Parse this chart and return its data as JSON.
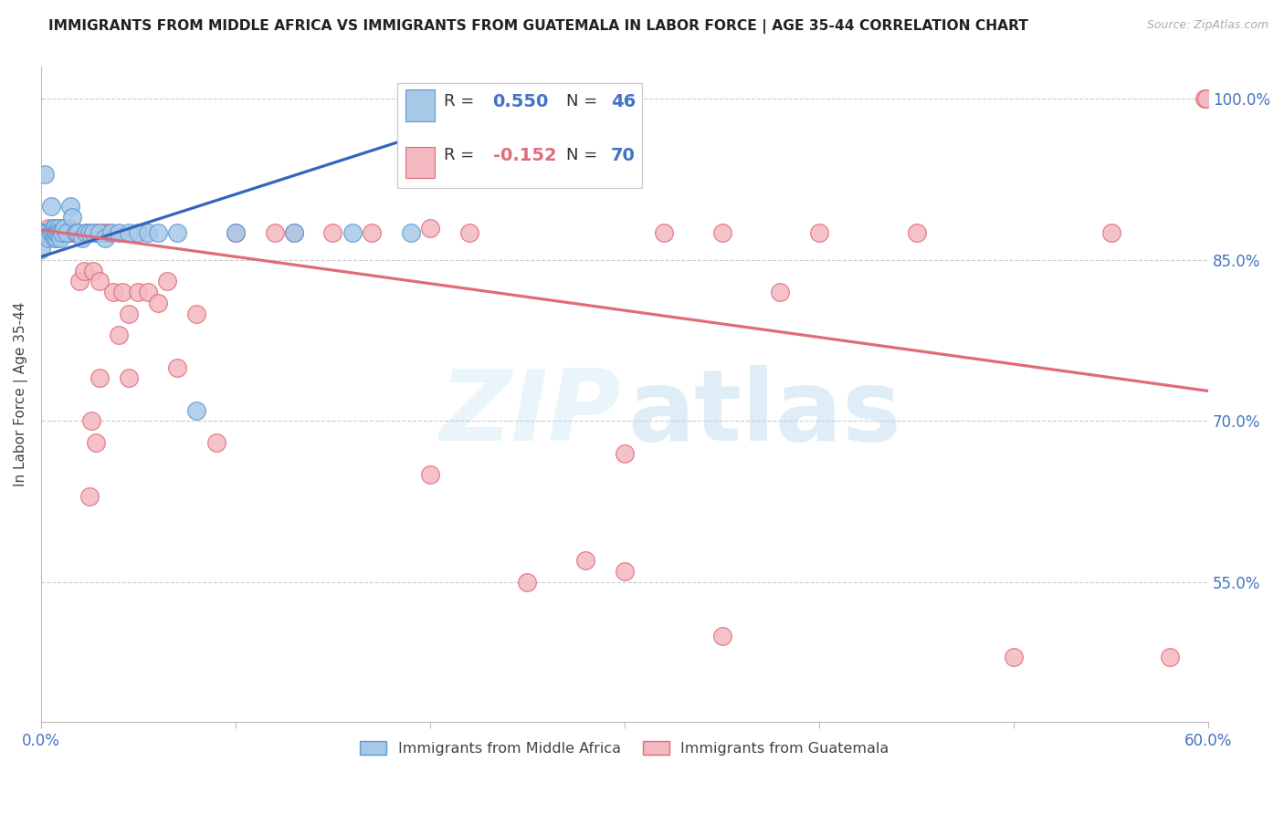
{
  "title": "IMMIGRANTS FROM MIDDLE AFRICA VS IMMIGRANTS FROM GUATEMALA IN LABOR FORCE | AGE 35-44 CORRELATION CHART",
  "source": "Source: ZipAtlas.com",
  "ylabel": "In Labor Force | Age 35-44",
  "R_blue": 0.55,
  "N_blue": 46,
  "R_pink": -0.152,
  "N_pink": 70,
  "color_blue_face": "#a8c8e8",
  "color_blue_edge": "#5b9bd5",
  "color_pink_face": "#f4b8c0",
  "color_pink_edge": "#e06c7a",
  "color_line_blue": "#3366bb",
  "color_line_pink": "#e06c7a",
  "color_axis_label": "#4472c4",
  "color_text": "#222222",
  "color_grid": "#cccccc",
  "color_source": "#aaaaaa",
  "xlim": [
    0.0,
    0.6
  ],
  "ylim": [
    0.42,
    1.03
  ],
  "yticks": [
    1.0,
    0.85,
    0.7,
    0.55
  ],
  "ytick_labels": [
    "100.0%",
    "85.0%",
    "70.0%",
    "55.0%"
  ],
  "xtick_left_label": "0.0%",
  "xtick_right_label": "60.0%",
  "legend_label_blue": "Immigrants from Middle Africa",
  "legend_label_pink": "Immigrants from Guatemala",
  "blue_line_x": [
    0.0,
    0.215
  ],
  "blue_line_y": [
    0.853,
    0.978
  ],
  "pink_line_x": [
    0.0,
    0.6
  ],
  "pink_line_y": [
    0.878,
    0.728
  ],
  "blue_x": [
    0.0,
    0.0,
    0.001,
    0.002,
    0.003,
    0.004,
    0.005,
    0.005,
    0.006,
    0.006,
    0.007,
    0.007,
    0.007,
    0.008,
    0.008,
    0.008,
    0.009,
    0.009,
    0.01,
    0.01,
    0.011,
    0.012,
    0.013,
    0.015,
    0.016,
    0.018,
    0.019,
    0.021,
    0.023,
    0.025,
    0.027,
    0.03,
    0.033,
    0.036,
    0.04,
    0.045,
    0.05,
    0.055,
    0.06,
    0.07,
    0.08,
    0.1,
    0.13,
    0.16,
    0.19,
    0.215
  ],
  "blue_y": [
    0.86,
    0.875,
    0.875,
    0.93,
    0.875,
    0.87,
    0.9,
    0.875,
    0.88,
    0.875,
    0.88,
    0.875,
    0.87,
    0.875,
    0.87,
    0.875,
    0.88,
    0.875,
    0.875,
    0.87,
    0.875,
    0.88,
    0.875,
    0.9,
    0.89,
    0.875,
    0.875,
    0.87,
    0.875,
    0.875,
    0.875,
    0.875,
    0.87,
    0.875,
    0.875,
    0.875,
    0.875,
    0.875,
    0.875,
    0.875,
    0.71,
    0.875,
    0.875,
    0.875,
    0.875,
    0.975
  ],
  "pink_x": [
    0.0,
    0.0,
    0.001,
    0.002,
    0.003,
    0.004,
    0.005,
    0.006,
    0.007,
    0.008,
    0.009,
    0.009,
    0.01,
    0.011,
    0.012,
    0.013,
    0.014,
    0.015,
    0.016,
    0.017,
    0.018,
    0.019,
    0.02,
    0.022,
    0.023,
    0.025,
    0.027,
    0.028,
    0.03,
    0.032,
    0.035,
    0.037,
    0.04,
    0.042,
    0.045,
    0.05,
    0.055,
    0.06,
    0.065,
    0.07,
    0.08,
    0.09,
    0.1,
    0.12,
    0.13,
    0.15,
    0.17,
    0.2,
    0.22,
    0.25,
    0.28,
    0.3,
    0.32,
    0.35,
    0.38,
    0.4,
    0.45,
    0.5,
    0.55,
    0.58,
    0.026,
    0.028,
    0.3,
    0.35,
    0.2,
    0.025,
    0.03,
    0.045,
    0.598,
    0.599
  ],
  "pink_y": [
    0.875,
    0.875,
    0.875,
    0.875,
    0.875,
    0.88,
    0.875,
    0.875,
    0.875,
    0.875,
    0.875,
    0.875,
    0.88,
    0.875,
    0.875,
    0.875,
    0.88,
    0.875,
    0.875,
    0.875,
    0.875,
    0.875,
    0.83,
    0.84,
    0.875,
    0.875,
    0.84,
    0.875,
    0.83,
    0.875,
    0.875,
    0.82,
    0.78,
    0.82,
    0.8,
    0.82,
    0.82,
    0.81,
    0.83,
    0.75,
    0.8,
    0.68,
    0.875,
    0.875,
    0.875,
    0.875,
    0.875,
    0.88,
    0.875,
    0.55,
    0.57,
    0.67,
    0.875,
    0.875,
    0.82,
    0.875,
    0.875,
    0.48,
    0.875,
    0.48,
    0.7,
    0.68,
    0.56,
    0.5,
    0.65,
    0.63,
    0.74,
    0.74,
    1.0,
    1.0
  ]
}
